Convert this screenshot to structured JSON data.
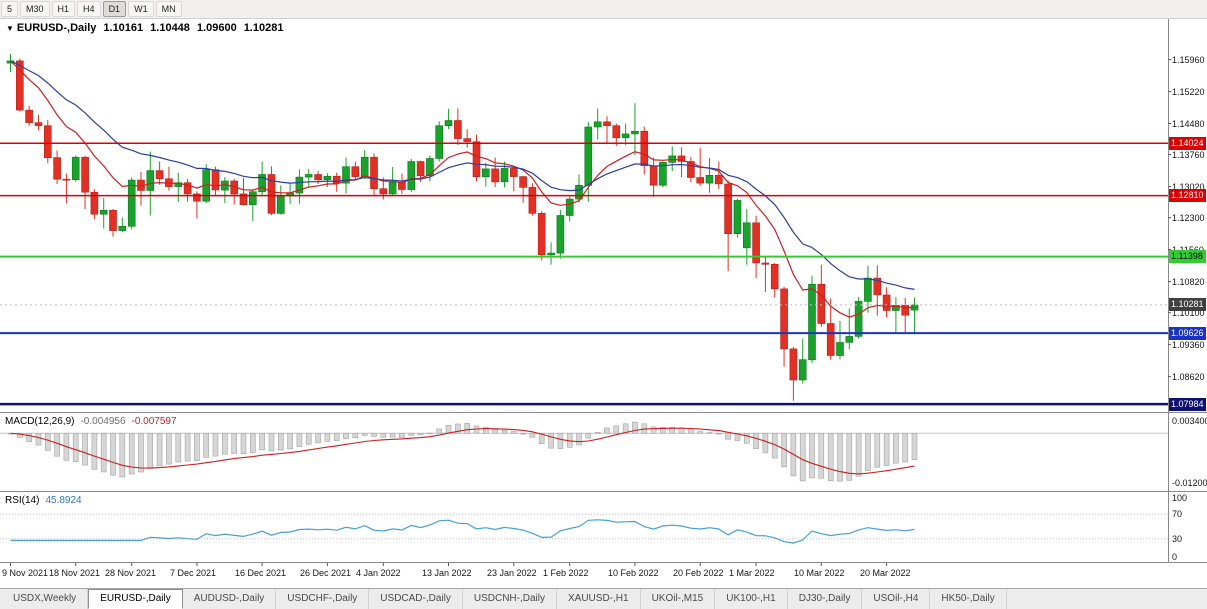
{
  "icons": {
    "collapse": "▼"
  },
  "toolbar": {
    "timeframes": [
      "5",
      "M30",
      "H1",
      "H4",
      "D1",
      "W1",
      "MN"
    ],
    "active": "D1"
  },
  "chart": {
    "header": {
      "symbol": "EURUSD-,Daily",
      "open": "1.10161",
      "high": "1.10448",
      "low": "1.09600",
      "close": "1.10281"
    }
  },
  "price_axis": {
    "gridline_labels": [
      "1.15960",
      "1.15220",
      "1.14480",
      "1.13760",
      "1.13020",
      "1.12300",
      "1.11560",
      "1.10820",
      "1.10100",
      "1.09360",
      "1.08620"
    ],
    "levels": [
      {
        "price": "1.14024",
        "color": "#dd0000",
        "text_color": "#ffffff",
        "width": 1.5
      },
      {
        "price": "1.12810",
        "color": "#dd0000",
        "text_color": "#ffffff",
        "width": 1.5
      },
      {
        "price": "1.11398",
        "color": "#33cc33",
        "text_color": "#000000",
        "width": 2
      },
      {
        "price": "1.09626",
        "color": "#1b32c8",
        "text_color": "#ffffff",
        "width": 2
      },
      {
        "price": "1.07984",
        "color": "#0f1172",
        "text_color": "#ffffff",
        "width": 2.5
      }
    ],
    "current": {
      "price": "1.10281",
      "badge_color": "#404040",
      "text_color": "#ffffff"
    }
  },
  "indicators": {
    "macd": {
      "title": "MACD(12,26,9)",
      "main_value": "-0.004956",
      "signal_value": "-0.007597",
      "scale_top": "0.003400",
      "scale_bottom": "-0.012000"
    },
    "rsi": {
      "title": "RSI(14)",
      "value": "45.8924",
      "scale": [
        "100",
        "70",
        "30",
        "0"
      ],
      "levels": [
        70,
        30
      ]
    }
  },
  "tabs": {
    "active_index": 1,
    "items": [
      "USDX,Weekly",
      "EURUSD-,Daily",
      "AUDUSD-,Daily",
      "USDCHF-,Daily",
      "USDCAD-,Daily",
      "USDCNH-,Daily",
      "XAUUSD-,H1",
      "UKOil-,M15",
      "UK100-,H1",
      "DJ30-,Daily",
      "USOil-,H4",
      "HK50-,Daily"
    ]
  },
  "chart_data": {
    "type": "candlestick",
    "symbol": "EURUSD-",
    "timeframe": "Daily",
    "title": "EURUSD-,Daily 1.10161 1.10448 1.09600 1.10281",
    "price_range": {
      "top": 1.169,
      "bottom": 1.078
    },
    "colors": {
      "up": "#1aa32c",
      "up_border": "#0c7a1a",
      "down": "#e23025",
      "down_border": "#b3221a",
      "macd_hist": "#d6d6d6",
      "macd_hist_border": "#a3a3a3",
      "macd_signal": "#cc1f1f",
      "rsi_line": "#45a0d8"
    },
    "moving_averages": [
      {
        "period": 10,
        "color": "#cc1f1f"
      },
      {
        "period": 21,
        "color": "#2b3f9e"
      }
    ],
    "candles": [
      [
        1.1588,
        1.1609,
        1.1567,
        1.1593
      ],
      [
        1.1593,
        1.1598,
        1.1476,
        1.1479
      ],
      [
        1.1479,
        1.1489,
        1.1443,
        1.145
      ],
      [
        1.145,
        1.1468,
        1.1432,
        1.1443
      ],
      [
        1.1443,
        1.1456,
        1.1356,
        1.1369
      ],
      [
        1.1369,
        1.1386,
        1.1308,
        1.1319
      ],
      [
        1.1319,
        1.1332,
        1.1263,
        1.1318
      ],
      [
        1.1318,
        1.1374,
        1.1313,
        1.137
      ],
      [
        1.137,
        1.1373,
        1.125,
        1.1289
      ],
      [
        1.1289,
        1.1296,
        1.1226,
        1.1238
      ],
      [
        1.1238,
        1.1275,
        1.1205,
        1.1247
      ],
      [
        1.1247,
        1.125,
        1.1186,
        1.12
      ],
      [
        1.12,
        1.123,
        1.1196,
        1.121
      ],
      [
        1.121,
        1.1323,
        1.1203,
        1.1317
      ],
      [
        1.1317,
        1.1336,
        1.1258,
        1.1293
      ],
      [
        1.1293,
        1.1383,
        1.1235,
        1.1339
      ],
      [
        1.1339,
        1.136,
        1.1306,
        1.132
      ],
      [
        1.132,
        1.1348,
        1.1293,
        1.1302
      ],
      [
        1.1302,
        1.1334,
        1.1266,
        1.1311
      ],
      [
        1.1311,
        1.132,
        1.1267,
        1.1285
      ],
      [
        1.1285,
        1.1291,
        1.1228,
        1.1268
      ],
      [
        1.1268,
        1.1354,
        1.1264,
        1.1341
      ],
      [
        1.1341,
        1.1348,
        1.128,
        1.1294
      ],
      [
        1.1294,
        1.1324,
        1.1264,
        1.1315
      ],
      [
        1.1315,
        1.132,
        1.126,
        1.1285
      ],
      [
        1.1285,
        1.1322,
        1.1258,
        1.126
      ],
      [
        1.126,
        1.1296,
        1.1222,
        1.129
      ],
      [
        1.129,
        1.136,
        1.128,
        1.133
      ],
      [
        1.133,
        1.1349,
        1.1236,
        1.124
      ],
      [
        1.124,
        1.1305,
        1.1237,
        1.128
      ],
      [
        1.128,
        1.131,
        1.1262,
        1.1287
      ],
      [
        1.1287,
        1.1342,
        1.1262,
        1.1324
      ],
      [
        1.1324,
        1.1343,
        1.13,
        1.133
      ],
      [
        1.133,
        1.1338,
        1.1308,
        1.1318
      ],
      [
        1.1318,
        1.1333,
        1.1301,
        1.1326
      ],
      [
        1.1326,
        1.1334,
        1.129,
        1.131
      ],
      [
        1.131,
        1.1369,
        1.1286,
        1.1348
      ],
      [
        1.1348,
        1.136,
        1.1316,
        1.1325
      ],
      [
        1.1325,
        1.1386,
        1.132,
        1.137
      ],
      [
        1.137,
        1.1379,
        1.1279,
        1.1297
      ],
      [
        1.1297,
        1.1323,
        1.1272,
        1.1285
      ],
      [
        1.1285,
        1.1347,
        1.128,
        1.1312
      ],
      [
        1.1312,
        1.1332,
        1.1285,
        1.1295
      ],
      [
        1.1295,
        1.1366,
        1.1289,
        1.136
      ],
      [
        1.136,
        1.1362,
        1.1313,
        1.1327
      ],
      [
        1.1327,
        1.1374,
        1.1314,
        1.1367
      ],
      [
        1.1367,
        1.1453,
        1.136,
        1.1443
      ],
      [
        1.1443,
        1.1482,
        1.1435,
        1.1455
      ],
      [
        1.1455,
        1.1483,
        1.1398,
        1.1413
      ],
      [
        1.1413,
        1.1435,
        1.1392,
        1.1406
      ],
      [
        1.1406,
        1.1422,
        1.1314,
        1.1325
      ],
      [
        1.1325,
        1.1357,
        1.1302,
        1.1343
      ],
      [
        1.1343,
        1.1369,
        1.1301,
        1.1313
      ],
      [
        1.1313,
        1.136,
        1.13,
        1.1344
      ],
      [
        1.1344,
        1.1349,
        1.1291,
        1.1325
      ],
      [
        1.1325,
        1.1327,
        1.1264,
        1.13
      ],
      [
        1.13,
        1.131,
        1.1235,
        1.124
      ],
      [
        1.124,
        1.1245,
        1.1131,
        1.1144
      ],
      [
        1.1144,
        1.1173,
        1.1121,
        1.1148
      ],
      [
        1.1148,
        1.1248,
        1.1135,
        1.1235
      ],
      [
        1.1235,
        1.1279,
        1.1221,
        1.1273
      ],
      [
        1.1273,
        1.133,
        1.1265,
        1.1305
      ],
      [
        1.1305,
        1.1452,
        1.1267,
        1.144
      ],
      [
        1.144,
        1.1483,
        1.1411,
        1.1452
      ],
      [
        1.1452,
        1.1465,
        1.14,
        1.1443
      ],
      [
        1.1443,
        1.1448,
        1.1396,
        1.1415
      ],
      [
        1.1415,
        1.1448,
        1.1398,
        1.1424
      ],
      [
        1.1424,
        1.1495,
        1.1375,
        1.143
      ],
      [
        1.143,
        1.1441,
        1.133,
        1.135
      ],
      [
        1.135,
        1.1369,
        1.1278,
        1.1305
      ],
      [
        1.1305,
        1.136,
        1.13,
        1.1358
      ],
      [
        1.1358,
        1.1395,
        1.1338,
        1.1373
      ],
      [
        1.1373,
        1.1393,
        1.1324,
        1.136
      ],
      [
        1.136,
        1.137,
        1.1312,
        1.1323
      ],
      [
        1.1323,
        1.1391,
        1.1303,
        1.131
      ],
      [
        1.131,
        1.1368,
        1.1288,
        1.1328
      ],
      [
        1.1328,
        1.136,
        1.1296,
        1.1308
      ],
      [
        1.1308,
        1.1316,
        1.1106,
        1.1193
      ],
      [
        1.1193,
        1.1274,
        1.1184,
        1.127
      ],
      [
        1.116,
        1.125,
        1.1121,
        1.1218
      ],
      [
        1.1218,
        1.1234,
        1.109,
        1.1125
      ],
      [
        1.1125,
        1.114,
        1.1058,
        1.1122
      ],
      [
        1.1122,
        1.1125,
        1.1045,
        1.1065
      ],
      [
        1.1065,
        1.107,
        1.0885,
        1.0926
      ],
      [
        1.0926,
        1.0931,
        1.0806,
        1.0854
      ],
      [
        1.0854,
        1.095,
        1.0846,
        1.0901
      ],
      [
        1.0901,
        1.1096,
        1.0893,
        1.1076
      ],
      [
        1.1076,
        1.1121,
        1.0977,
        1.0985
      ],
      [
        1.0985,
        1.1043,
        1.0901,
        1.0911
      ],
      [
        1.0911,
        1.0991,
        1.0902,
        1.0941
      ],
      [
        1.0941,
        1.102,
        1.0925,
        1.0955
      ],
      [
        1.0955,
        1.1046,
        1.095,
        1.1036
      ],
      [
        1.1036,
        1.1119,
        1.101,
        1.109
      ],
      [
        1.109,
        1.112,
        1.1003,
        1.1051
      ],
      [
        1.1051,
        1.1069,
        1.0999,
        1.1015
      ],
      [
        1.1015,
        1.1046,
        1.0963,
        1.1027
      ],
      [
        1.1027,
        1.1044,
        1.0963,
        1.1004
      ],
      [
        1.10161,
        1.10448,
        1.096,
        1.10281
      ]
    ],
    "x_ticks": [
      {
        "i": 0,
        "label": "9 Nov 2021"
      },
      {
        "i": 7,
        "label": "18 Nov 2021"
      },
      {
        "i": 13,
        "label": "28 Nov 2021"
      },
      {
        "i": 20,
        "label": "7 Dec 2021"
      },
      {
        "i": 27,
        "label": "16 Dec 2021"
      },
      {
        "i": 34,
        "label": "26 Dec 2021"
      },
      {
        "i": 40,
        "label": "4 Jan 2022"
      },
      {
        "i": 47,
        "label": "13 Jan 2022"
      },
      {
        "i": 54,
        "label": "23 Jan 2022"
      },
      {
        "i": 60,
        "label": "1 Feb 2022"
      },
      {
        "i": 67,
        "label": "10 Feb 2022"
      },
      {
        "i": 74,
        "label": "20 Feb 2022"
      },
      {
        "i": 80,
        "label": "1 Mar 2022"
      },
      {
        "i": 87,
        "label": "10 Mar 2022"
      },
      {
        "i": 94,
        "label": "20 Mar 2022"
      }
    ]
  }
}
